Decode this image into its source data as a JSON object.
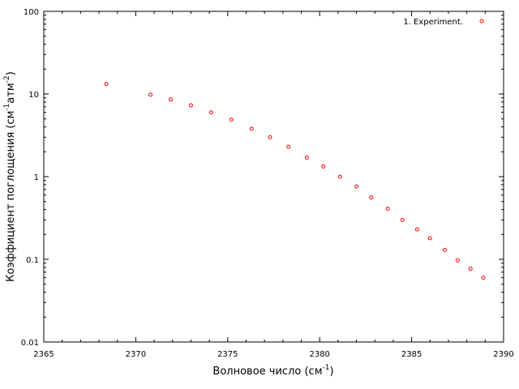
{
  "chart_data": {
    "type": "scatter",
    "xlabel": {
      "text": "Волновое число (см",
      "sup": "-1",
      "tail": ")"
    },
    "ylabel": {
      "parts": [
        {
          "t": "Коэффициент поглощения (см"
        },
        {
          "t": "-1",
          "sup": true
        },
        {
          "t": "атм"
        },
        {
          "t": "-2",
          "sup": true
        },
        {
          "t": ")"
        }
      ]
    },
    "xlim": [
      2365,
      2390
    ],
    "ylim": [
      0.01,
      100
    ],
    "yscale": "log",
    "x_ticks": [
      "2365",
      "2370",
      "2375",
      "2380",
      "2385",
      "2390"
    ],
    "y_ticks": [
      "0.01",
      "0.1",
      "1",
      "10",
      "100"
    ],
    "grid": false,
    "legend": {
      "position": "top-right",
      "label": "1. Experiment."
    },
    "series": [
      {
        "name": "1. Experiment.",
        "color": "#ff0000",
        "marker": "open-circle",
        "points": [
          {
            "x": 2368.4,
            "y": 13.2
          },
          {
            "x": 2370.8,
            "y": 9.8
          },
          {
            "x": 2371.9,
            "y": 8.6
          },
          {
            "x": 2373.0,
            "y": 7.3
          },
          {
            "x": 2374.1,
            "y": 6.0
          },
          {
            "x": 2375.2,
            "y": 4.9
          },
          {
            "x": 2376.3,
            "y": 3.8
          },
          {
            "x": 2377.3,
            "y": 3.0
          },
          {
            "x": 2378.3,
            "y": 2.3
          },
          {
            "x": 2379.3,
            "y": 1.7
          },
          {
            "x": 2380.2,
            "y": 1.33
          },
          {
            "x": 2381.1,
            "y": 1.0
          },
          {
            "x": 2382.0,
            "y": 0.76
          },
          {
            "x": 2382.8,
            "y": 0.56
          },
          {
            "x": 2383.7,
            "y": 0.41
          },
          {
            "x": 2384.5,
            "y": 0.3
          },
          {
            "x": 2385.3,
            "y": 0.23
          },
          {
            "x": 2386.0,
            "y": 0.18
          },
          {
            "x": 2386.8,
            "y": 0.13
          },
          {
            "x": 2387.5,
            "y": 0.097
          },
          {
            "x": 2388.2,
            "y": 0.077
          },
          {
            "x": 2388.9,
            "y": 0.06
          }
        ]
      }
    ]
  }
}
